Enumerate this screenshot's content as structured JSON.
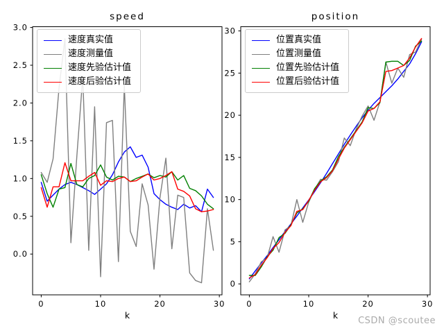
{
  "figure": {
    "background": "#ffffff"
  },
  "watermark": {
    "text": "CSDN @scoutee",
    "color": "#ababab"
  },
  "chart_data": [
    {
      "type": "line",
      "title": "speed",
      "xlabel": "k",
      "x": [
        0,
        1,
        2,
        3,
        4,
        5,
        6,
        7,
        8,
        9,
        10,
        11,
        12,
        13,
        14,
        15,
        16,
        17,
        18,
        19,
        20,
        21,
        22,
        23,
        24,
        25,
        26,
        27,
        28,
        29
      ],
      "xlim": [
        -1.45,
        30.45
      ],
      "ylim": [
        -0.54,
        3.01
      ],
      "xticks": {
        "values": [
          0,
          10,
          20,
          30
        ],
        "labels": [
          "0",
          "10",
          "20",
          "30"
        ]
      },
      "yticks": {
        "values": [
          0,
          0.5,
          1,
          1.5,
          2,
          2.5,
          3
        ],
        "labels": [
          "0.0",
          "0.5",
          "1.0",
          "1.5",
          "2.0",
          "2.5",
          "3.0"
        ]
      },
      "legend_position": "upper-left",
      "grid": false,
      "series": [
        {
          "key": "speed-true",
          "name": "速度真实值",
          "color": "#0000ff",
          "values": [
            0.95,
            0.7,
            0.78,
            0.86,
            0.92,
            0.95,
            0.92,
            0.88,
            0.84,
            0.79,
            0.86,
            0.93,
            1.05,
            1.22,
            1.35,
            1.42,
            1.28,
            1.31,
            1.15,
            0.8,
            0.72,
            0.66,
            0.62,
            0.59,
            0.66,
            0.61,
            0.64,
            0.56,
            0.86,
            0.75
          ]
        },
        {
          "key": "speed-measured",
          "name": "速度测量值",
          "color": "#7f7f7f",
          "values": [
            1.08,
            0.95,
            1.26,
            2.2,
            2.85,
            0.15,
            1.3,
            2.35,
            0.05,
            1.95,
            -0.3,
            1.74,
            1.77,
            -0.1,
            2.23,
            0.3,
            0.1,
            0.93,
            0.65,
            -0.2,
            0.75,
            1.27,
            0.07,
            0.78,
            0.75,
            -0.25,
            -0.35,
            -0.38,
            0.6,
            0.05
          ]
        },
        {
          "key": "speed-prior-estimate",
          "name": "速度先验估计值",
          "color": "#008000",
          "values": [
            1.05,
            0.8,
            0.62,
            0.86,
            0.88,
            1.2,
            0.92,
            0.89,
            1.0,
            1.04,
            1.18,
            1.02,
            0.98,
            1.03,
            1.02,
            0.96,
            1.0,
            1.03,
            1.06,
            1.01,
            1.04,
            1.02,
            1.09,
            0.98,
            1.04,
            0.87,
            0.84,
            0.77,
            0.66,
            0.6
          ]
        },
        {
          "key": "speed-posterior-estimate",
          "name": "速度后验估计值",
          "color": "#ff0000",
          "values": [
            0.88,
            0.62,
            0.89,
            0.89,
            1.21,
            0.97,
            0.97,
            0.97,
            1.03,
            1.08,
            0.91,
            0.97,
            0.96,
            1.0,
            1.02,
            0.96,
            0.97,
            1.02,
            1.06,
            0.98,
            1.0,
            1.04,
            1.09,
            0.86,
            0.83,
            0.77,
            0.6,
            0.56,
            0.57,
            0.59
          ]
        }
      ]
    },
    {
      "type": "line",
      "title": "position",
      "xlabel": "k",
      "x": [
        0,
        1,
        2,
        3,
        4,
        5,
        6,
        7,
        8,
        9,
        10,
        11,
        12,
        13,
        14,
        15,
        16,
        17,
        18,
        19,
        20,
        21,
        22,
        23,
        24,
        25,
        26,
        27,
        28,
        29
      ],
      "xlim": [
        -1.45,
        30.45
      ],
      "ylim": [
        -1.3,
        30.5
      ],
      "xticks": {
        "values": [
          0,
          10,
          20,
          30
        ],
        "labels": [
          "0",
          "10",
          "20",
          "30"
        ]
      },
      "yticks": {
        "values": [
          0,
          5,
          10,
          15,
          20,
          25,
          30
        ],
        "labels": [
          "0",
          "5",
          "10",
          "15",
          "20",
          "25",
          "30"
        ]
      },
      "legend_position": "upper-left",
      "grid": false,
      "series": [
        {
          "key": "position-true",
          "name": "位置真实值",
          "color": "#0000ff",
          "values": [
            0.6,
            1.55,
            2.45,
            3.35,
            4.3,
            5.25,
            6.2,
            7.1,
            8.05,
            9.0,
            9.95,
            10.95,
            12.0,
            13.1,
            14.25,
            15.4,
            16.55,
            17.65,
            18.7,
            19.7,
            20.6,
            21.4,
            22.1,
            22.8,
            23.5,
            24.3,
            25.2,
            26.1,
            27.3,
            28.7
          ]
        },
        {
          "key": "position-measured",
          "name": "位置测量值",
          "color": "#7f7f7f",
          "values": [
            0.25,
            1.2,
            2.6,
            3.1,
            5.6,
            3.75,
            6.4,
            6.9,
            10.0,
            7.3,
            9.7,
            11.2,
            12.4,
            12.3,
            13.3,
            14.5,
            17.3,
            16.4,
            18.4,
            19.9,
            21.1,
            19.4,
            21.6,
            26.3,
            23.8,
            25.6,
            24.5,
            27.2,
            27.5,
            29.0
          ]
        },
        {
          "key": "position-prior-estimate",
          "name": "位置先验估计值",
          "color": "#008000",
          "values": [
            1.0,
            1.0,
            2.0,
            3.2,
            4.0,
            5.5,
            6.0,
            7.0,
            8.4,
            8.9,
            9.8,
            11.3,
            12.2,
            12.7,
            13.5,
            15.1,
            16.2,
            17.2,
            18.2,
            19.2,
            20.9,
            20.8,
            21.5,
            26.3,
            26.4,
            26.4,
            25.9,
            26.5,
            28.2,
            28.8
          ]
        },
        {
          "key": "position-posterior-estimate",
          "name": "位置后验估计值",
          "color": "#ff0000",
          "values": [
            0.7,
            1.1,
            2.2,
            3.1,
            4.2,
            4.9,
            6.1,
            6.9,
            8.6,
            8.8,
            9.9,
            11.1,
            12.1,
            12.6,
            13.4,
            14.8,
            16.1,
            17.1,
            18.1,
            19.1,
            20.5,
            20.8,
            21.6,
            25.2,
            25.3,
            25.6,
            25.9,
            26.8,
            28.1,
            29.1
          ]
        }
      ]
    }
  ]
}
